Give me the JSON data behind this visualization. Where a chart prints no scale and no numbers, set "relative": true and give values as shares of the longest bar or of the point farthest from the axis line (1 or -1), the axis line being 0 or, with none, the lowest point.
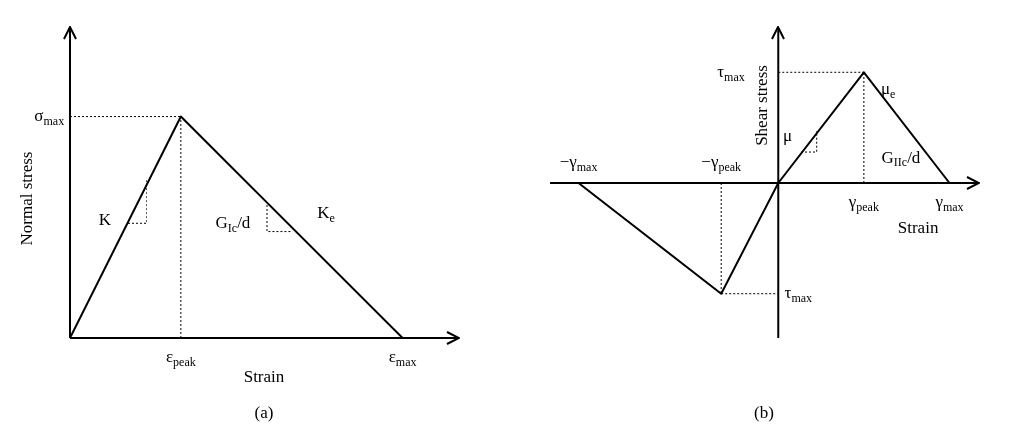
{
  "chart_data": [
    {
      "type": "line",
      "relative": true,
      "xlabel": "Strain",
      "ylabel": "Normal stress",
      "marker": "none",
      "line_style": "solid",
      "categories": [
        null,
        null,
        "ε$_{peak}$",
        null,
        null,
        null,
        "ε$_{max}$",
        null
      ],
      "series": [
        {
          "color": "#000000",
          "values": [
            0,
            null,
            1,
            null,
            null,
            null,
            0,
            null
          ]
        },
        {
          "color": "#000000",
          "line_style": "dotted",
          "values": [
            1,
            null,
            1,
            null,
            null,
            null,
            null,
            null
          ]
        }
      ],
      "ref_lines": [
        {
          "axis": "x",
          "value": "ε$_{peak}$",
          "line_style": "dotted",
          "color": "#000000"
        }
      ],
      "annotations": [
        "σ$_{max}$",
        "K",
        "K$_{e}$",
        "G$_{Ic}$/d",
        "(a)"
      ]
    },
    {
      "type": "line",
      "relative": true,
      "xlabel": "Strain",
      "ylabel": "Shear stress",
      "marker": "none",
      "line_style": "solid",
      "categories": [
        null,
        "−γ$_{max}$",
        null,
        null,
        null,
        null,
        "−γ$_{peak}$",
        null,
        null,
        null,
        null,
        "γ$_{peak}$",
        null,
        null,
        "γ$_{max}$",
        null
      ],
      "series": [
        {
          "color": "#000000",
          "values": [
            null,
            0,
            null,
            null,
            null,
            null,
            -1,
            null,
            0,
            null,
            null,
            1,
            null,
            null,
            0,
            null
          ]
        },
        {
          "color": "#000000",
          "line_style": "dotted",
          "values": [
            null,
            null,
            null,
            null,
            null,
            null,
            null,
            null,
            1,
            null,
            null,
            1,
            null,
            null,
            null,
            null
          ]
        },
        {
          "color": "#000000",
          "line_style": "dotted",
          "values": [
            null,
            null,
            null,
            null,
            null,
            null,
            -1,
            null,
            -1,
            null,
            null,
            null,
            null,
            null,
            null,
            null
          ]
        }
      ],
      "ref_lines": [
        {
          "axis": "x",
          "value": "−γ$_{peak}$",
          "line_style": "dotted",
          "color": "#000000"
        },
        {
          "axis": "x",
          "value": "γ$_{peak}$",
          "line_style": "dotted",
          "color": "#000000"
        }
      ],
      "annotations": [
        "τ$_{max}$",
        "τ$_{max}$",
        "μ",
        "μ$_{e}$",
        "G$_{IIc}$/d",
        "(b)"
      ]
    }
  ]
}
